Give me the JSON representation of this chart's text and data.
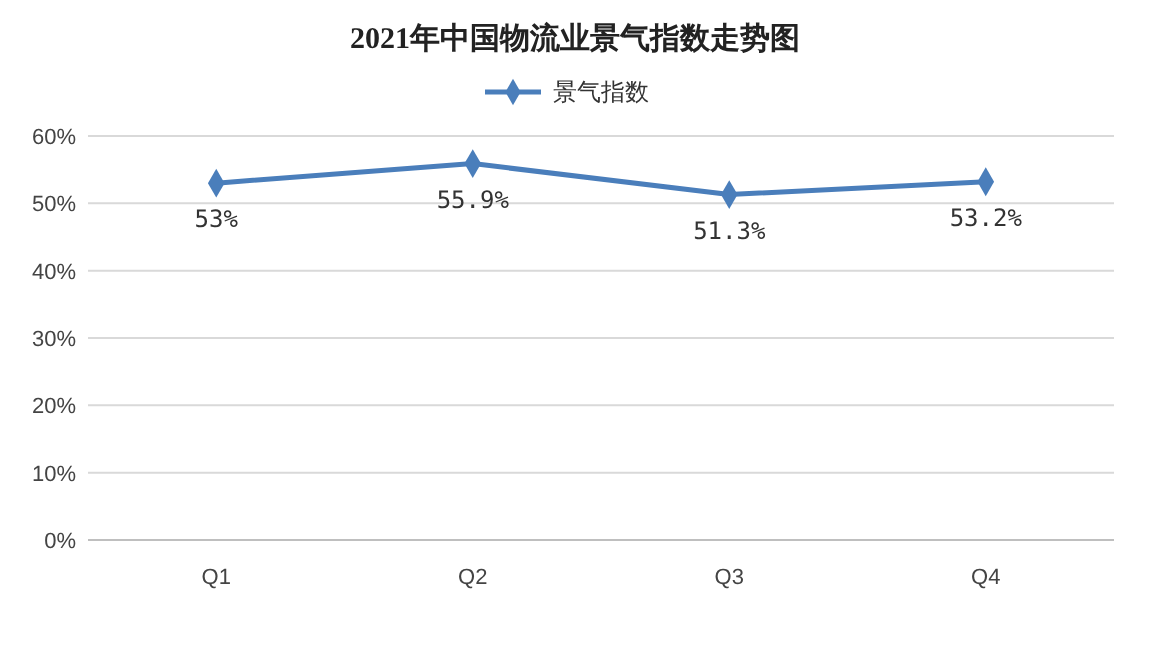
{
  "chart_data": {
    "type": "line",
    "title": "2021年中国物流业景气指数走势图",
    "categories": [
      "Q1",
      "Q2",
      "Q3",
      "Q4"
    ],
    "series": [
      {
        "name": "景气指数",
        "color": "#4a7ebb",
        "values": [
          53,
          55.9,
          51.3,
          53.2
        ],
        "value_labels": [
          "53%",
          "55.9%",
          "51.3%",
          "53.2%"
        ]
      }
    ],
    "ylim": [
      0,
      60
    ],
    "yticks": [
      {
        "value": 0,
        "label": "0%"
      },
      {
        "value": 10,
        "label": "10%"
      },
      {
        "value": 20,
        "label": "20%"
      },
      {
        "value": 30,
        "label": "30%"
      },
      {
        "value": 40,
        "label": "40%"
      },
      {
        "value": 50,
        "label": "50%"
      },
      {
        "value": 60,
        "label": "60%"
      }
    ],
    "grid": "y",
    "legend": "top",
    "marker": "diamond",
    "line_style": "solid"
  }
}
